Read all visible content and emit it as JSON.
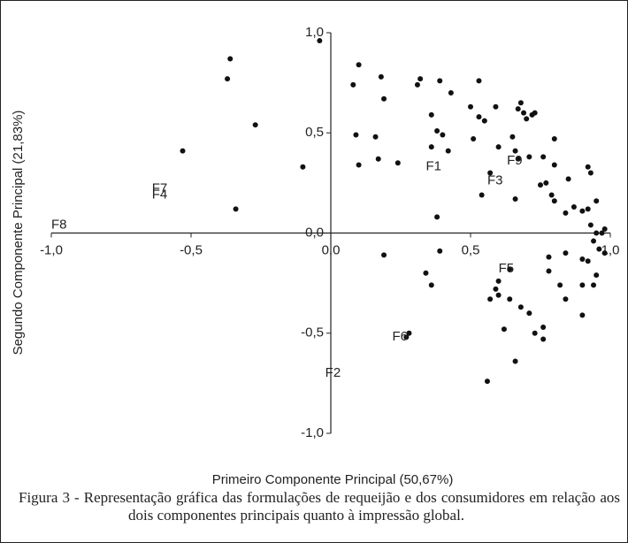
{
  "chart_data": {
    "type": "scatter",
    "xlabel": "Primeiro Componente Principal (50,67%)",
    "ylabel": "Segundo Componente Principal (21,83%)",
    "xlim": [
      -1,
      1
    ],
    "ylim": [
      -1,
      1
    ],
    "xticks": [
      {
        "value": -1,
        "label": "-1,0"
      },
      {
        "value": -0.5,
        "label": "-0,5"
      },
      {
        "value": 0,
        "label": "0,0"
      },
      {
        "value": 0.5,
        "label": "0,5"
      },
      {
        "value": 1,
        "label": "1,0"
      }
    ],
    "yticks": [
      {
        "value": -1,
        "label": "-1,0"
      },
      {
        "value": -0.5,
        "label": "-0,5"
      },
      {
        "value": 0,
        "label": "0,0"
      },
      {
        "value": 0.5,
        "label": "0,5"
      },
      {
        "value": 1,
        "label": "1,0"
      }
    ],
    "color": "#111",
    "x": [
      -0.04,
      -0.36,
      -0.37,
      -0.27,
      -0.53,
      -0.34,
      -0.1,
      0.1,
      0.08,
      0.09,
      0.1,
      0.18,
      0.19,
      0.16,
      0.17,
      0.24,
      0.31,
      0.32,
      0.39,
      0.43,
      0.36,
      0.36,
      0.38,
      0.4,
      0.42,
      0.5,
      0.53,
      0.53,
      0.55,
      0.51,
      0.57,
      0.54,
      0.59,
      0.6,
      0.65,
      0.67,
      0.68,
      0.69,
      0.7,
      0.72,
      0.73,
      0.66,
      0.71,
      0.67,
      0.76,
      0.8,
      0.8,
      0.77,
      0.75,
      0.79,
      0.8,
      0.85,
      0.84,
      0.87,
      0.92,
      0.93,
      0.95,
      0.9,
      0.92,
      0.93,
      0.95,
      0.97,
      0.98,
      0.94,
      0.96,
      0.98,
      0.9,
      0.92,
      0.95,
      0.94,
      0.9,
      0.84,
      0.78,
      0.78,
      0.82,
      0.84,
      0.9,
      0.66,
      0.64,
      0.6,
      0.59,
      0.6,
      0.57,
      0.64,
      0.68,
      0.71,
      0.62,
      0.73,
      0.76,
      0.76,
      0.66,
      0.56,
      0.28,
      0.27,
      0.19,
      0.34,
      0.36,
      0.39,
      0.38
    ],
    "values": [
      0.96,
      0.87,
      0.77,
      0.54,
      0.41,
      0.12,
      0.33,
      0.84,
      0.74,
      0.49,
      0.34,
      0.78,
      0.67,
      0.48,
      0.37,
      0.35,
      0.74,
      0.77,
      0.76,
      0.7,
      0.59,
      0.43,
      0.51,
      0.49,
      0.41,
      0.63,
      0.76,
      0.58,
      0.56,
      0.47,
      0.3,
      0.19,
      0.63,
      0.43,
      0.48,
      0.62,
      0.65,
      0.6,
      0.57,
      0.59,
      0.6,
      0.41,
      0.38,
      0.37,
      0.38,
      0.34,
      0.47,
      0.25,
      0.24,
      0.19,
      0.16,
      0.27,
      0.1,
      0.13,
      0.33,
      0.3,
      0.16,
      0.11,
      0.12,
      0.04,
      0.0,
      0.0,
      0.02,
      -0.04,
      -0.08,
      -0.1,
      -0.13,
      -0.14,
      -0.21,
      -0.26,
      -0.26,
      -0.1,
      -0.12,
      -0.19,
      -0.26,
      -0.33,
      -0.41,
      0.17,
      -0.18,
      -0.24,
      -0.28,
      -0.31,
      -0.33,
      -0.33,
      -0.37,
      -0.4,
      -0.48,
      -0.5,
      -0.47,
      -0.53,
      -0.64,
      -0.74,
      -0.5,
      -0.52,
      -0.11,
      -0.2,
      -0.26,
      -0.09,
      0.08
    ],
    "annotations": [
      {
        "text": "F7",
        "x": -0.64,
        "y": 0.22
      },
      {
        "text": "F4",
        "x": -0.64,
        "y": 0.19
      },
      {
        "text": "F8",
        "x": -1.0,
        "y": 0.04
      },
      {
        "text": "F1",
        "x": 0.34,
        "y": 0.33
      },
      {
        "text": "F9",
        "x": 0.63,
        "y": 0.36
      },
      {
        "text": "F3",
        "x": 0.56,
        "y": 0.26
      },
      {
        "text": "F5",
        "x": 0.6,
        "y": -0.18
      },
      {
        "text": "F6",
        "x": 0.22,
        "y": -0.52
      },
      {
        "text": "F2",
        "x": -0.02,
        "y": -0.7
      }
    ]
  },
  "caption": "Figura 3 - Representação gráfica das formulações de requeijão e dos consumidores em relação aos dois componentes principais quanto à impressão global."
}
